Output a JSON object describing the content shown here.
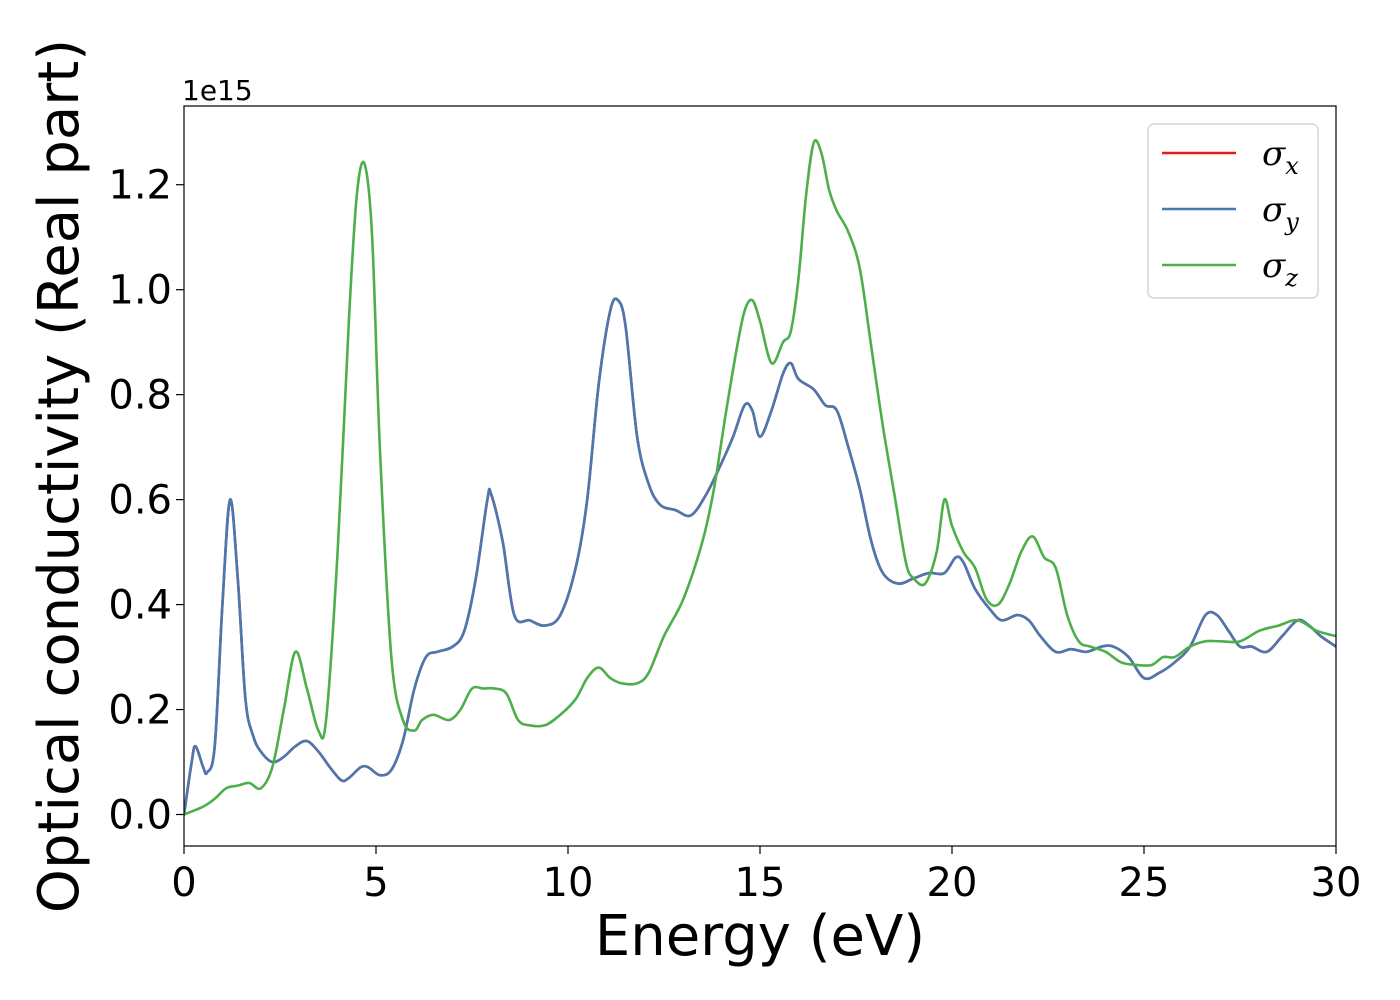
{
  "chart_data": {
    "type": "line",
    "xlabel": "Energy (eV)",
    "ylabel": "Optical conductivity (Real part)",
    "y_offset_text": "1e15",
    "xlim": [
      0,
      30
    ],
    "ylim": [
      -0.06,
      1.35
    ],
    "xticks": [
      0,
      5,
      10,
      15,
      20,
      25,
      30
    ],
    "xtick_labels": [
      "0",
      "5",
      "10",
      "15",
      "20",
      "25",
      "30"
    ],
    "yticks": [
      0.0,
      0.2,
      0.4,
      0.6,
      0.8,
      1.0,
      1.2
    ],
    "ytick_labels": [
      "0.0",
      "0.2",
      "0.4",
      "0.6",
      "0.8",
      "1.0",
      "1.2"
    ],
    "grid": false,
    "legend_position": "top-right",
    "series": [
      {
        "name": "σx",
        "symbol": "σ",
        "subscript": "x",
        "color": "#e41a1c",
        "x": [
          0,
          0.2,
          0.3,
          0.5,
          0.6,
          0.8,
          1.0,
          1.2,
          1.4,
          1.6,
          1.8,
          2.0,
          2.3,
          2.6,
          2.9,
          3.2,
          3.5,
          3.8,
          4.1,
          4.3,
          4.6,
          4.8,
          5.1,
          5.4,
          5.7,
          6.0,
          6.3,
          6.6,
          7.0,
          7.3,
          7.6,
          7.9,
          8.0,
          8.3,
          8.6,
          9.0,
          9.4,
          9.8,
          10.2,
          10.5,
          10.8,
          11.1,
          11.3,
          11.5,
          11.8,
          12.1,
          12.4,
          12.8,
          13.2,
          13.6,
          14.0,
          14.3,
          14.6,
          14.8,
          15.0,
          15.3,
          15.6,
          15.8,
          16.0,
          16.4,
          16.7,
          17.0,
          17.3,
          17.6,
          17.9,
          18.2,
          18.6,
          19.0,
          19.4,
          19.8,
          20.1,
          20.3,
          20.6,
          21.0,
          21.3,
          21.7,
          22.0,
          22.3,
          22.7,
          23.1,
          23.5,
          23.9,
          24.2,
          24.6,
          25.0,
          25.4,
          25.8,
          26.2,
          26.6,
          26.9,
          27.2,
          27.5,
          27.8,
          28.2,
          28.6,
          29.0,
          29.3,
          29.6,
          30.0
        ],
        "values": [
          0.0,
          0.1,
          0.13,
          0.09,
          0.08,
          0.13,
          0.4,
          0.6,
          0.45,
          0.22,
          0.15,
          0.12,
          0.1,
          0.11,
          0.13,
          0.14,
          0.12,
          0.09,
          0.065,
          0.07,
          0.09,
          0.09,
          0.075,
          0.085,
          0.14,
          0.24,
          0.3,
          0.31,
          0.32,
          0.35,
          0.45,
          0.6,
          0.61,
          0.52,
          0.38,
          0.37,
          0.36,
          0.38,
          0.47,
          0.6,
          0.82,
          0.96,
          0.98,
          0.93,
          0.72,
          0.63,
          0.59,
          0.58,
          0.57,
          0.61,
          0.67,
          0.72,
          0.78,
          0.77,
          0.72,
          0.77,
          0.84,
          0.86,
          0.83,
          0.81,
          0.78,
          0.77,
          0.7,
          0.62,
          0.52,
          0.46,
          0.44,
          0.45,
          0.46,
          0.46,
          0.49,
          0.48,
          0.43,
          0.39,
          0.37,
          0.38,
          0.37,
          0.34,
          0.31,
          0.315,
          0.31,
          0.32,
          0.32,
          0.3,
          0.26,
          0.27,
          0.29,
          0.32,
          0.38,
          0.38,
          0.35,
          0.32,
          0.32,
          0.31,
          0.34,
          0.37,
          0.36,
          0.34,
          0.32
        ]
      },
      {
        "name": "σy",
        "symbol": "σ",
        "subscript": "y",
        "color": "#4a78b0",
        "x": [
          0,
          0.2,
          0.3,
          0.5,
          0.6,
          0.8,
          1.0,
          1.2,
          1.4,
          1.6,
          1.8,
          2.0,
          2.3,
          2.6,
          2.9,
          3.2,
          3.5,
          3.8,
          4.1,
          4.3,
          4.6,
          4.8,
          5.1,
          5.4,
          5.7,
          6.0,
          6.3,
          6.6,
          7.0,
          7.3,
          7.6,
          7.9,
          8.0,
          8.3,
          8.6,
          9.0,
          9.4,
          9.8,
          10.2,
          10.5,
          10.8,
          11.1,
          11.3,
          11.5,
          11.8,
          12.1,
          12.4,
          12.8,
          13.2,
          13.6,
          14.0,
          14.3,
          14.6,
          14.8,
          15.0,
          15.3,
          15.6,
          15.8,
          16.0,
          16.4,
          16.7,
          17.0,
          17.3,
          17.6,
          17.9,
          18.2,
          18.6,
          19.0,
          19.4,
          19.8,
          20.1,
          20.3,
          20.6,
          21.0,
          21.3,
          21.7,
          22.0,
          22.3,
          22.7,
          23.1,
          23.5,
          23.9,
          24.2,
          24.6,
          25.0,
          25.4,
          25.8,
          26.2,
          26.6,
          26.9,
          27.2,
          27.5,
          27.8,
          28.2,
          28.6,
          29.0,
          29.3,
          29.6,
          30.0
        ],
        "values": [
          0.0,
          0.1,
          0.13,
          0.09,
          0.08,
          0.13,
          0.4,
          0.6,
          0.45,
          0.22,
          0.15,
          0.12,
          0.1,
          0.11,
          0.13,
          0.14,
          0.12,
          0.09,
          0.065,
          0.07,
          0.09,
          0.09,
          0.075,
          0.085,
          0.14,
          0.24,
          0.3,
          0.31,
          0.32,
          0.35,
          0.45,
          0.6,
          0.61,
          0.52,
          0.38,
          0.37,
          0.36,
          0.38,
          0.47,
          0.6,
          0.82,
          0.96,
          0.98,
          0.93,
          0.72,
          0.63,
          0.59,
          0.58,
          0.57,
          0.61,
          0.67,
          0.72,
          0.78,
          0.77,
          0.72,
          0.77,
          0.84,
          0.86,
          0.83,
          0.81,
          0.78,
          0.77,
          0.7,
          0.62,
          0.52,
          0.46,
          0.44,
          0.45,
          0.46,
          0.46,
          0.49,
          0.48,
          0.43,
          0.39,
          0.37,
          0.38,
          0.37,
          0.34,
          0.31,
          0.315,
          0.31,
          0.32,
          0.32,
          0.3,
          0.26,
          0.27,
          0.29,
          0.32,
          0.38,
          0.38,
          0.35,
          0.32,
          0.32,
          0.31,
          0.34,
          0.37,
          0.36,
          0.34,
          0.32
        ]
      },
      {
        "name": "σz",
        "symbol": "σ",
        "subscript": "z",
        "color": "#4daf4a",
        "x": [
          0,
          0.5,
          0.8,
          1.1,
          1.4,
          1.7,
          2.0,
          2.3,
          2.6,
          2.9,
          3.2,
          3.5,
          3.7,
          4.0,
          4.3,
          4.5,
          4.7,
          4.9,
          5.1,
          5.4,
          5.7,
          6.0,
          6.2,
          6.5,
          6.9,
          7.2,
          7.5,
          7.8,
          8.1,
          8.4,
          8.7,
          9.0,
          9.4,
          9.8,
          10.2,
          10.5,
          10.8,
          11.1,
          11.4,
          11.8,
          12.1,
          12.5,
          13.0,
          13.5,
          13.8,
          14.1,
          14.4,
          14.6,
          14.8,
          15.0,
          15.3,
          15.6,
          15.8,
          16.0,
          16.2,
          16.4,
          16.6,
          16.8,
          17.0,
          17.3,
          17.6,
          17.9,
          18.2,
          18.5,
          18.8,
          19.0,
          19.3,
          19.6,
          19.8,
          20.0,
          20.3,
          20.6,
          20.9,
          21.2,
          21.5,
          21.8,
          22.1,
          22.4,
          22.7,
          23.0,
          23.3,
          23.6,
          24.0,
          24.4,
          24.8,
          25.2,
          25.5,
          25.8,
          26.2,
          26.6,
          27.0,
          27.5,
          28.0,
          28.5,
          29.0,
          29.5,
          30.0
        ],
        "values": [
          0.0,
          0.015,
          0.03,
          0.05,
          0.055,
          0.06,
          0.05,
          0.09,
          0.2,
          0.31,
          0.24,
          0.16,
          0.18,
          0.5,
          0.95,
          1.18,
          1.24,
          1.1,
          0.7,
          0.3,
          0.18,
          0.16,
          0.18,
          0.19,
          0.18,
          0.2,
          0.24,
          0.24,
          0.24,
          0.23,
          0.18,
          0.17,
          0.17,
          0.19,
          0.22,
          0.26,
          0.28,
          0.26,
          0.25,
          0.25,
          0.27,
          0.34,
          0.41,
          0.52,
          0.62,
          0.76,
          0.89,
          0.96,
          0.98,
          0.94,
          0.86,
          0.9,
          0.92,
          1.02,
          1.18,
          1.28,
          1.26,
          1.19,
          1.15,
          1.11,
          1.04,
          0.89,
          0.74,
          0.61,
          0.48,
          0.45,
          0.44,
          0.5,
          0.6,
          0.55,
          0.5,
          0.47,
          0.41,
          0.4,
          0.44,
          0.5,
          0.53,
          0.49,
          0.47,
          0.38,
          0.33,
          0.32,
          0.31,
          0.29,
          0.285,
          0.285,
          0.3,
          0.3,
          0.32,
          0.33,
          0.33,
          0.33,
          0.35,
          0.36,
          0.37,
          0.35,
          0.34
        ]
      }
    ]
  }
}
